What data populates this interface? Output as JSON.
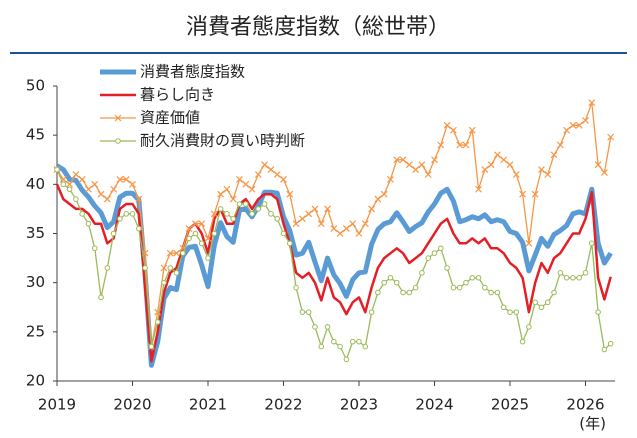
{
  "chart_data": {
    "type": "line",
    "title": "消費者態度指数（総世帯）",
    "x_label": "(年)",
    "categories": [
      "2019",
      null,
      null,
      null,
      null,
      null,
      null,
      null,
      null,
      null,
      null,
      null,
      "2020",
      null,
      null,
      null,
      null,
      null,
      null,
      null,
      null,
      null,
      null,
      null,
      "2021",
      null,
      null,
      null,
      null,
      null,
      null,
      null,
      null,
      null,
      null,
      null,
      "2022",
      null,
      null,
      null,
      null,
      null,
      null,
      null,
      null,
      null,
      null,
      null,
      "2023",
      null,
      null,
      null,
      null,
      null,
      null,
      null,
      null,
      null,
      null,
      null,
      "2024",
      null,
      null,
      null,
      null,
      null,
      null,
      null,
      null,
      null,
      null,
      null,
      "2025",
      null,
      null,
      null,
      null,
      null,
      null,
      null,
      null,
      null,
      null,
      null,
      "2026",
      null,
      null,
      null,
      null
    ],
    "ylim": [
      20,
      50
    ],
    "yticks": [
      20,
      25,
      30,
      35,
      40,
      45,
      50
    ],
    "grid": false,
    "legend": "upper left",
    "series": [
      {
        "name": "消費者態度指数",
        "color": "#5b9bd5",
        "marker": "none",
        "values": [
          41.9,
          41.5,
          40.5,
          40.4,
          39.4,
          38.7,
          37.8,
          37.1,
          35.6,
          36.2,
          38.7,
          39.1,
          39.1,
          38.4,
          30.9,
          21.6,
          24.0,
          28.4,
          29.5,
          29.3,
          32.7,
          33.6,
          33.7,
          31.8,
          29.6,
          33.8,
          36.1,
          34.7,
          34.1,
          37.4,
          37.5,
          36.7,
          37.8,
          39.2,
          39.2,
          39.1,
          36.7,
          35.3,
          32.8,
          33.0,
          34.1,
          32.1,
          30.2,
          32.5,
          30.8,
          29.9,
          28.6,
          30.3,
          31.0,
          31.1,
          33.9,
          35.4,
          36.0,
          36.2,
          37.1,
          36.2,
          35.2,
          35.7,
          36.1,
          37.2,
          38.0,
          39.1,
          39.5,
          38.3,
          36.2,
          36.4,
          36.7,
          36.5,
          36.9,
          36.2,
          36.4,
          36.2,
          35.2,
          35.0,
          34.1,
          31.2,
          32.8,
          34.5,
          33.7,
          34.9,
          35.3,
          35.8,
          37.0,
          37.2,
          37.0,
          39.5,
          34.0,
          32.0,
          33.0
        ]
      },
      {
        "name": "暮らし向き",
        "color": "#e41f26",
        "marker": "none",
        "values": [
          40,
          38.5,
          38,
          37.5,
          37.5,
          37,
          36,
          36,
          34,
          34.5,
          37.5,
          38,
          38,
          37,
          29.5,
          22,
          25,
          29,
          31,
          31.5,
          33.5,
          35.5,
          36,
          35,
          33,
          36.5,
          37.5,
          36,
          36,
          38,
          38.5,
          37.5,
          38.5,
          39,
          39,
          38.5,
          36,
          34,
          31,
          30.5,
          31,
          30,
          28.2,
          30.5,
          28.5,
          28,
          26.8,
          28,
          28.5,
          27,
          29.5,
          31.5,
          32.5,
          33,
          33.5,
          33,
          32,
          32.5,
          33,
          34,
          35,
          36,
          36.5,
          35,
          34,
          34,
          34.5,
          34,
          34.5,
          33.5,
          33.5,
          33,
          32,
          31.5,
          30.5,
          27,
          30,
          32,
          31,
          32.5,
          33,
          34,
          35,
          35,
          36.5,
          39.2,
          30.5,
          28.3,
          30.6
        ]
      },
      {
        "name": "資産価値",
        "color": "#f79646",
        "marker": "x",
        "values": [
          41.5,
          40.5,
          40,
          41,
          40.5,
          39.5,
          40,
          39,
          38.5,
          39.5,
          40.5,
          40.5,
          40,
          38.5,
          33,
          23.5,
          27,
          31.5,
          33,
          33,
          33.5,
          35.5,
          36,
          36,
          34.5,
          37,
          39,
          39.5,
          38.5,
          40.5,
          40,
          39.5,
          41,
          42,
          41.5,
          41,
          40.5,
          39,
          36,
          36.5,
          37,
          37.5,
          36,
          37.5,
          35.5,
          35,
          35.5,
          36,
          35,
          36,
          37.5,
          38.5,
          39,
          40.5,
          42.5,
          42.5,
          42,
          41.5,
          42,
          41,
          42.5,
          44,
          46,
          45.5,
          44,
          44,
          45.5,
          39.5,
          41.5,
          42,
          43,
          42.5,
          42,
          41,
          39,
          34,
          39,
          41.5,
          41,
          43,
          44,
          45.5,
          46,
          46,
          46.5,
          48.3,
          42,
          41.2,
          44.8
        ]
      },
      {
        "name": "耐久消費財の買い時判断",
        "color": "#9bbb59",
        "marker": "o",
        "values": [
          41.5,
          40,
          39.5,
          38.5,
          37,
          36,
          33.5,
          28.5,
          31.5,
          35,
          36.5,
          37,
          37,
          35.5,
          31.5,
          23.5,
          26,
          30,
          31.5,
          31,
          33,
          34.5,
          35,
          34,
          32.5,
          35,
          37.5,
          37,
          36.5,
          38,
          38,
          37,
          37.5,
          38,
          37,
          36.5,
          35,
          34,
          29.5,
          27,
          27,
          25.5,
          23.5,
          25.5,
          24,
          23.5,
          22.2,
          24,
          24,
          23.5,
          27,
          29,
          30,
          30.5,
          30,
          29,
          29,
          29.5,
          31,
          32.5,
          33,
          33.5,
          31.5,
          29.5,
          29.5,
          30,
          30.5,
          30.5,
          29.5,
          29,
          29,
          27.5,
          27,
          27,
          24,
          25.5,
          28,
          27.5,
          28,
          29,
          31,
          30.5,
          30.5,
          30.5,
          31,
          34,
          27,
          23.2,
          23.8
        ]
      }
    ]
  }
}
